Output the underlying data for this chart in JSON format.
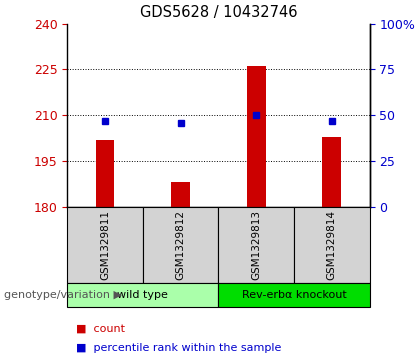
{
  "title": "GDS5628 / 10432746",
  "samples": [
    "GSM1329811",
    "GSM1329812",
    "GSM1329813",
    "GSM1329814"
  ],
  "counts": [
    202,
    188,
    226,
    203
  ],
  "percentiles": [
    47,
    46,
    50,
    47
  ],
  "ylim_left": [
    180,
    240
  ],
  "ylim_right": [
    0,
    100
  ],
  "yticks_left": [
    180,
    195,
    210,
    225,
    240
  ],
  "yticks_right": [
    0,
    25,
    50,
    75,
    100
  ],
  "bar_color": "#cc0000",
  "dot_color": "#0000cc",
  "groups": [
    {
      "label": "wild type",
      "indices": [
        0,
        1
      ],
      "color": "#aaffaa"
    },
    {
      "label": "Rev-erbα knockout",
      "indices": [
        2,
        3
      ],
      "color": "#00dd00"
    }
  ],
  "xlabel_row": "genotype/variation",
  "legend_count_label": "count",
  "legend_pct_label": "percentile rank within the sample",
  "bar_width": 0.25,
  "figsize": [
    4.2,
    3.63
  ],
  "dpi": 100
}
